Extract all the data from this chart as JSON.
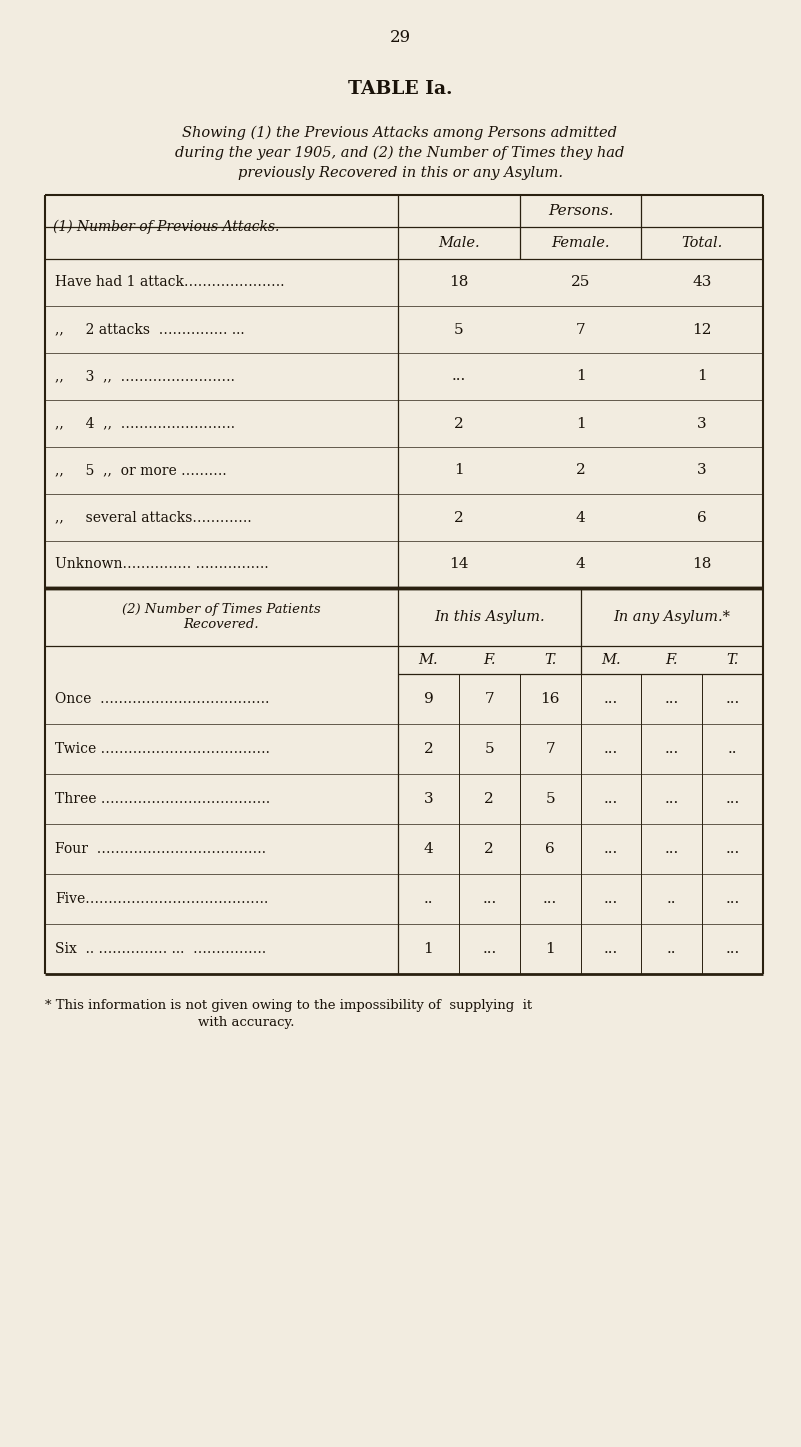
{
  "page_number": "29",
  "title": "TABLE Ia.",
  "subtitle_line1": "Showing (1) the Previous Attacks among Persons admitted",
  "subtitle_line2": "during the year 1905, and (2) the Number of Times they had",
  "subtitle_line3": "previously Recovered in this or any Asylum.",
  "bg_color": "#f2ece0",
  "text_color": "#1a1209",
  "part1": {
    "header_col": "(1) Number of Previous Attacks.",
    "persons_header": "Persons.",
    "col_headers": [
      "Male.",
      "Female.",
      "Total."
    ],
    "rows": [
      [
        "Have had 1 attack………………….",
        "18",
        "25",
        "43"
      ],
      [
        ",, 2 attacks  …………… ...",
        "5",
        "7",
        "12"
      ],
      [
        ",, 3  ,,  …………………….",
        "...",
        "1",
        "1"
      ],
      [
        ",, 4  ,,  …………………….",
        "2",
        "1",
        "3"
      ],
      [
        ",, 5  ,,  or more ……….",
        "1",
        "2",
        "3"
      ],
      [
        ",, several attacks………….",
        "2",
        "4",
        "6"
      ],
      [
        "Unknown…………… …………….",
        "14",
        "4",
        "18"
      ]
    ]
  },
  "part2": {
    "header_col": "(2) Number of Times Patients\nRecovered.",
    "this_asylum": "In this Asylum.",
    "any_asylum": "In any Asylum.*",
    "sub_headers": [
      "M.",
      "F.",
      "T.",
      "M.",
      "F.",
      "T."
    ],
    "rows": [
      [
        "Once  ……………………………….",
        "9",
        "7",
        "16",
        "...",
        "...",
        "..."
      ],
      [
        "Twice ……………………………….",
        "2",
        "5",
        "7",
        "...",
        "...",
        ".."
      ],
      [
        "Three ……………………………….",
        "3",
        "2",
        "5",
        "...",
        "...",
        "..."
      ],
      [
        "Four  ……………………………….",
        "4",
        "2",
        "6",
        "...",
        "...",
        "..."
      ],
      [
        "Five………………………………….",
        "..",
        "...",
        "...",
        "...",
        "..",
        "..."
      ],
      [
        "Six  .. …………… ...  …………….",
        "1",
        "...",
        "1",
        "...",
        "..",
        "..."
      ]
    ]
  },
  "footnote_line1": "* This information is not given owing to the impossibility of  supplying  it",
  "footnote_line2": "                                    with accuracy."
}
